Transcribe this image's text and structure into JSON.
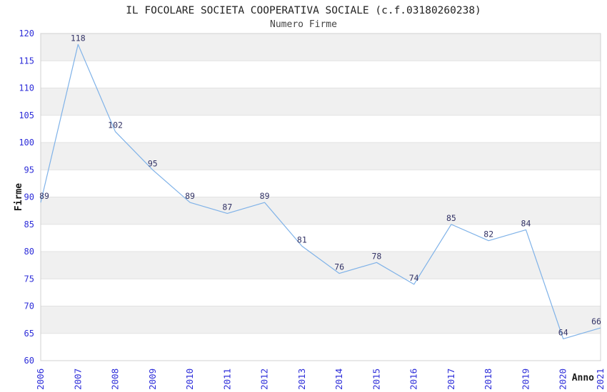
{
  "header": {
    "title": "IL FOCOLARE SOCIETA COOPERATIVA SOCIALE (c.f.03180260238)",
    "subtitle": "Numero Firme"
  },
  "chart_data": {
    "type": "line",
    "title": "IL FOCOLARE SOCIETA COOPERATIVA SOCIALE (c.f.03180260238)",
    "subtitle": "Numero Firme",
    "xlabel": "Anno",
    "ylabel": "Firme",
    "x": [
      2006,
      2007,
      2008,
      2009,
      2010,
      2011,
      2012,
      2013,
      2014,
      2015,
      2016,
      2017,
      2018,
      2019,
      2020,
      2021
    ],
    "series": [
      {
        "name": "Numero Firme",
        "values": [
          89,
          118,
          102,
          95,
          89,
          87,
          89,
          81,
          76,
          78,
          74,
          85,
          82,
          84,
          64,
          66
        ]
      }
    ],
    "ylim": [
      60,
      120
    ],
    "ytick_step": 5,
    "grid": true,
    "banding": "alternating-horizontal",
    "legend_position": "none",
    "data_labels_visible": true,
    "colors": {
      "background": "#ffffff",
      "band": "#f0f0f0",
      "gridline": "#e2e2e2",
      "plot_border": "#d0d0d0",
      "line": "#7fb2e8",
      "tick_label": "#2d2dd9",
      "data_label": "#333366",
      "title": "#222222",
      "subtitle": "#444444",
      "axis_title": "#1a1a1a"
    }
  }
}
